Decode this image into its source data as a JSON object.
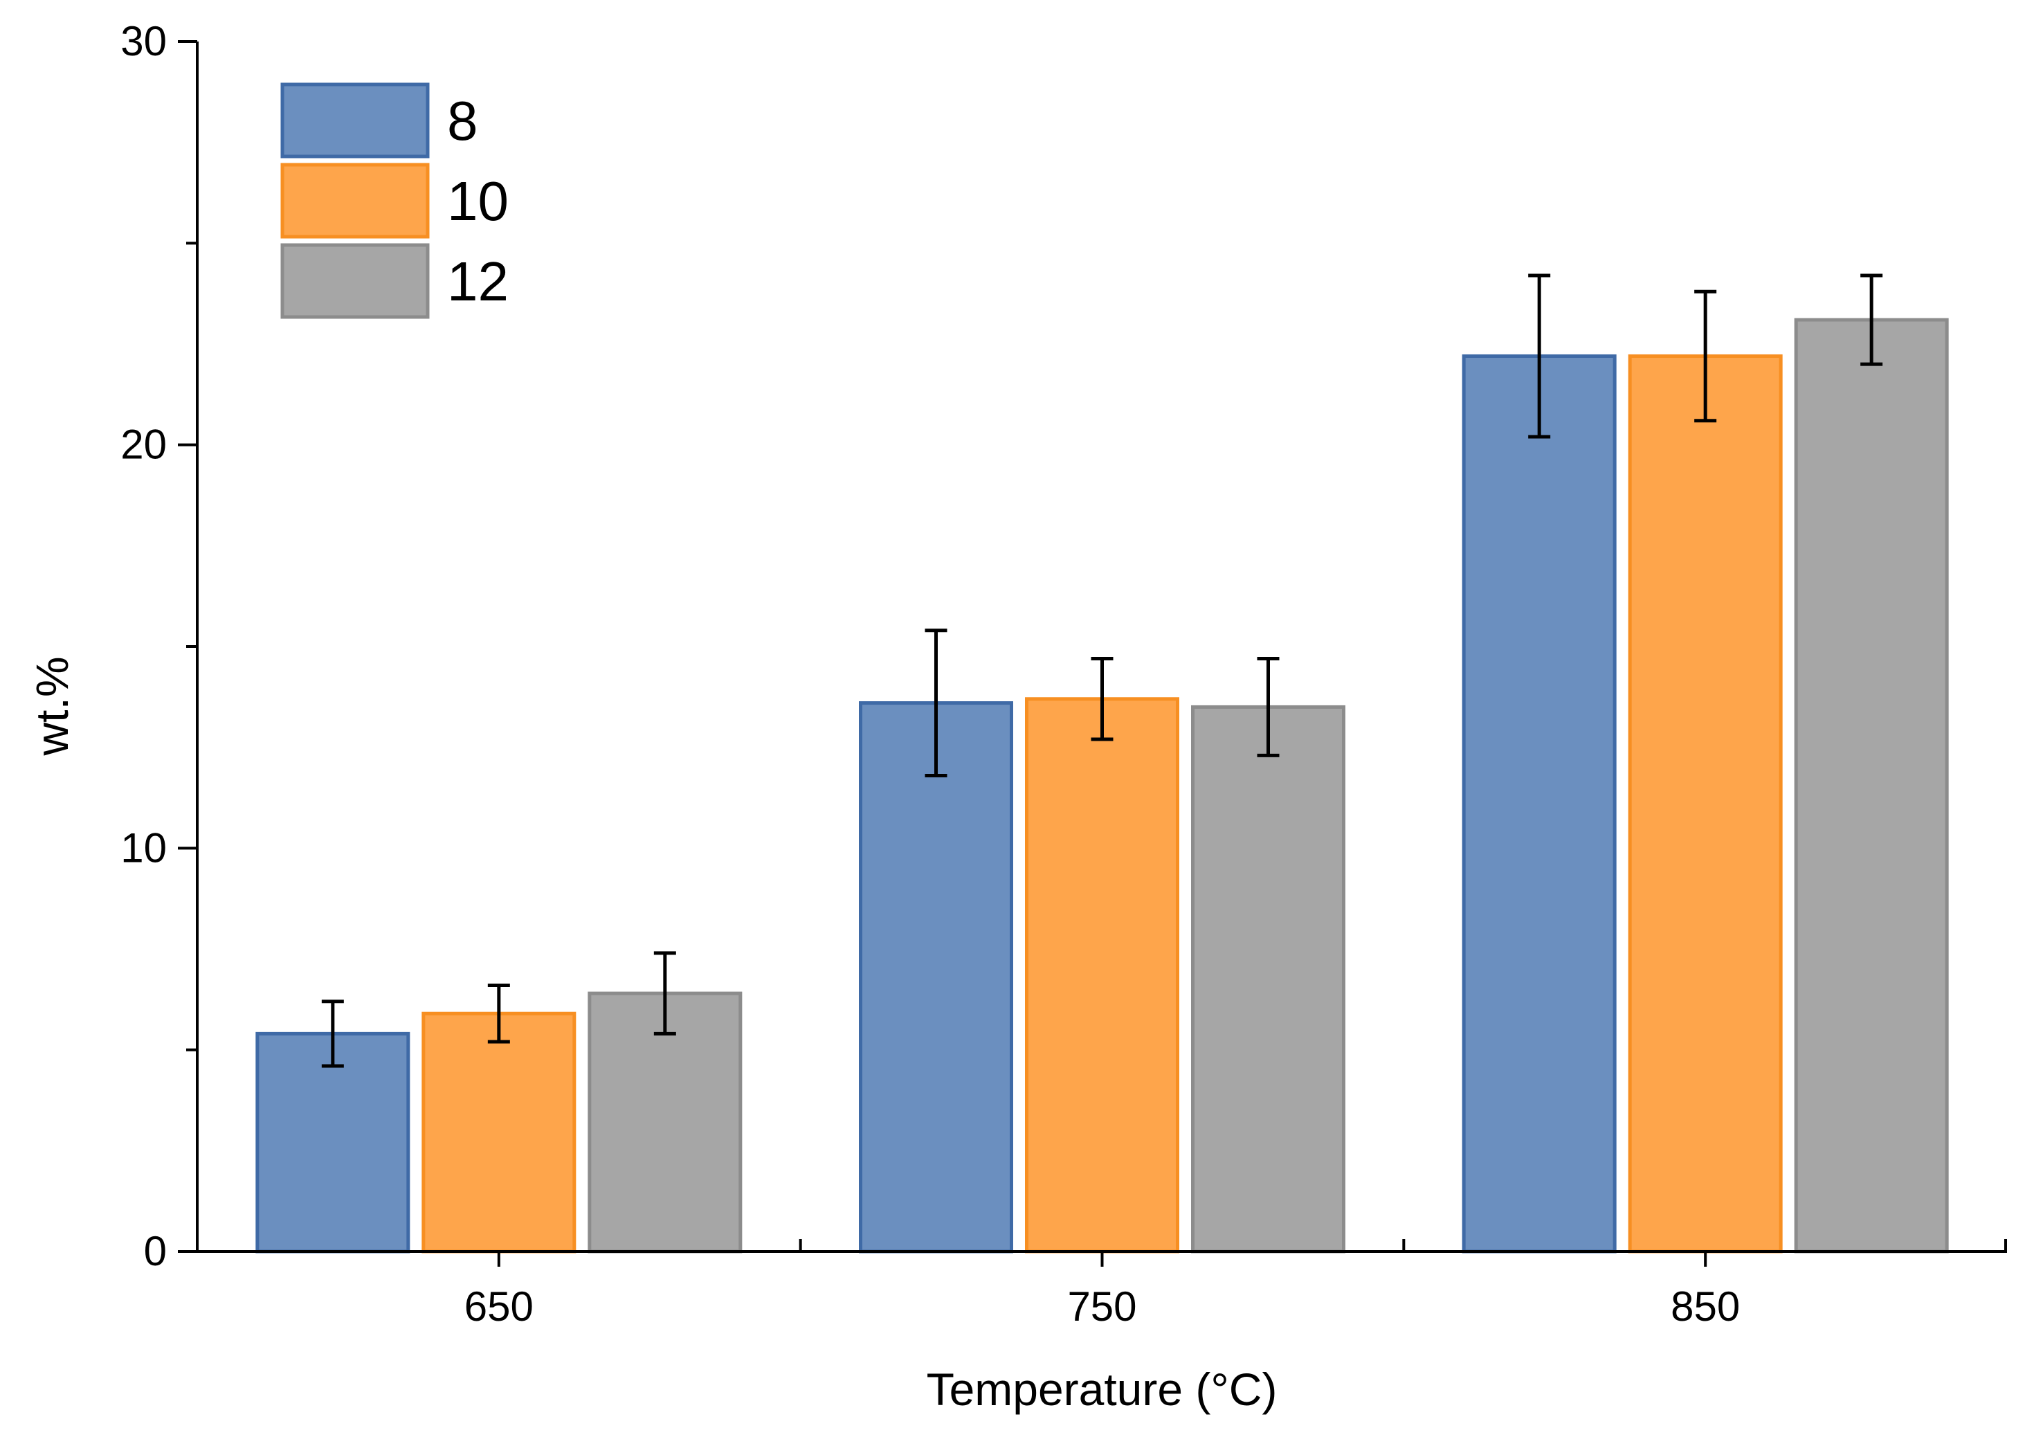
{
  "chart_data": {
    "type": "bar",
    "title": "",
    "xlabel": "Temperature (°C)",
    "ylabel": "wt.%",
    "categories": [
      "650",
      "750",
      "850"
    ],
    "ylim": [
      0,
      30
    ],
    "yticks": [
      0,
      10,
      20,
      30
    ],
    "grid": false,
    "legend_position": "top-left",
    "series": [
      {
        "name": "8",
        "color": "#6b8fbf",
        "edge_color": "#3f6aa6",
        "values": [
          5.4,
          13.6,
          22.2
        ],
        "errors": [
          0.8,
          1.8,
          2.0
        ]
      },
      {
        "name": "10",
        "color": "#fea54b",
        "edge_color": "#f78f22",
        "values": [
          5.9,
          13.7,
          22.2
        ],
        "errors": [
          0.7,
          1.0,
          1.6
        ]
      },
      {
        "name": "12",
        "color": "#a6a6a6",
        "edge_color": "#8c8c8c",
        "values": [
          6.4,
          13.5,
          23.1
        ],
        "errors": [
          1.0,
          1.2,
          1.1
        ]
      }
    ]
  }
}
